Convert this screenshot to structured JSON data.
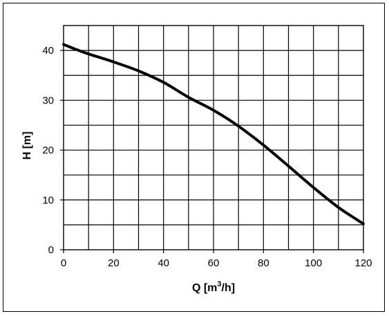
{
  "chart_data": {
    "type": "line",
    "xlabel_base": "Q [m",
    "xlabel_sup": "3",
    "xlabel_tail": "/h]",
    "ylabel": "H [m]",
    "xlim": [
      0,
      120
    ],
    "ylim": [
      0,
      45
    ],
    "xticks": [
      0,
      20,
      40,
      60,
      80,
      100,
      120
    ],
    "yticks": [
      0,
      10,
      20,
      30,
      40
    ],
    "x_tick_labels": [
      "0",
      "20",
      "40",
      "60",
      "80",
      "100",
      "120"
    ],
    "y_tick_labels": [
      "0",
      "10",
      "20",
      "30",
      "40"
    ],
    "x_grid_step": 10,
    "y_grid_step": 5,
    "grid": true,
    "series": [
      {
        "x": [
          0,
          5,
          10,
          20,
          30,
          40,
          50,
          60,
          70,
          80,
          90,
          100,
          110,
          120
        ],
        "y": [
          41.2,
          40.2,
          39.3,
          37.7,
          35.9,
          33.6,
          30.6,
          28.0,
          24.8,
          21.0,
          16.8,
          12.5,
          8.5,
          5.2
        ],
        "color": "#000000"
      }
    ]
  }
}
